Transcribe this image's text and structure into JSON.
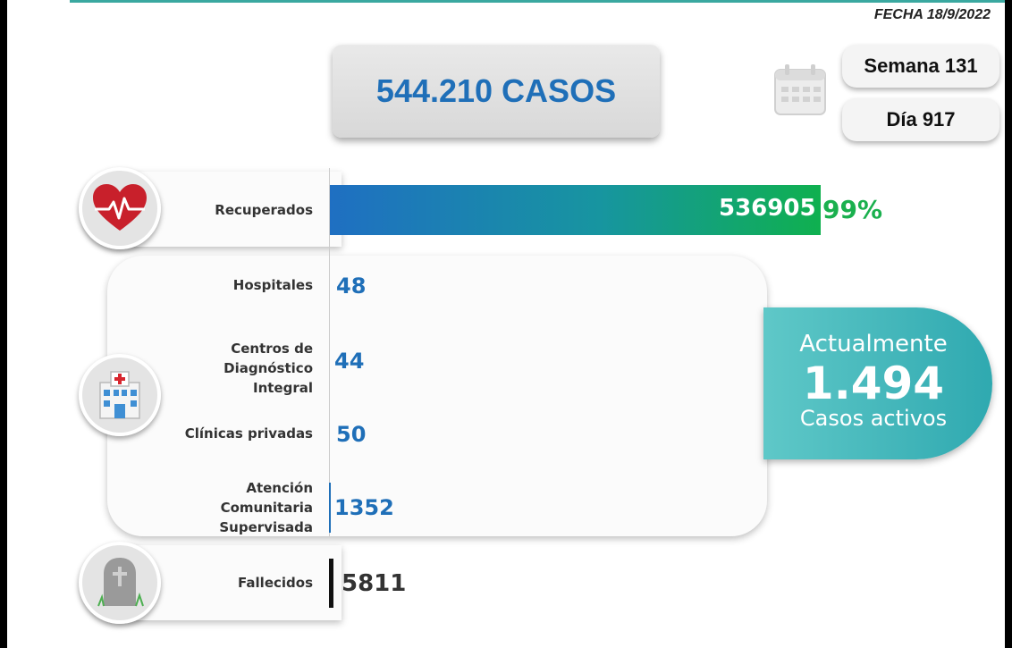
{
  "header": {
    "date": "FECHA 18/9/2022"
  },
  "summary": {
    "total_cases": "544.210 CASOS",
    "week": "Semana 131",
    "day": "Día 917"
  },
  "recovered": {
    "label": "Recuperados",
    "value": "536905",
    "percent": "99%"
  },
  "facilities": [
    {
      "label": "Hospitales",
      "value": "48"
    },
    {
      "label": "Centros de Diagnóstico Integral",
      "value": "44"
    },
    {
      "label": "Clínicas privadas",
      "value": "50"
    },
    {
      "label": "Atención Comunitaria Supervisada",
      "value": "1352"
    }
  ],
  "active": {
    "line1": "Actualmente",
    "value": "1.494",
    "line3": "Casos activos"
  },
  "deaths": {
    "label": "Fallecidos",
    "value": "5811"
  },
  "colors": {
    "accent_blue": "#1f6fb8",
    "green": "#1ab04e",
    "teal": "#2fa9b0"
  },
  "icons": {
    "calendar": "calendar-icon",
    "heart": "heart-pulse-icon",
    "hospital": "hospital-icon",
    "tomb": "tombstone-icon"
  }
}
